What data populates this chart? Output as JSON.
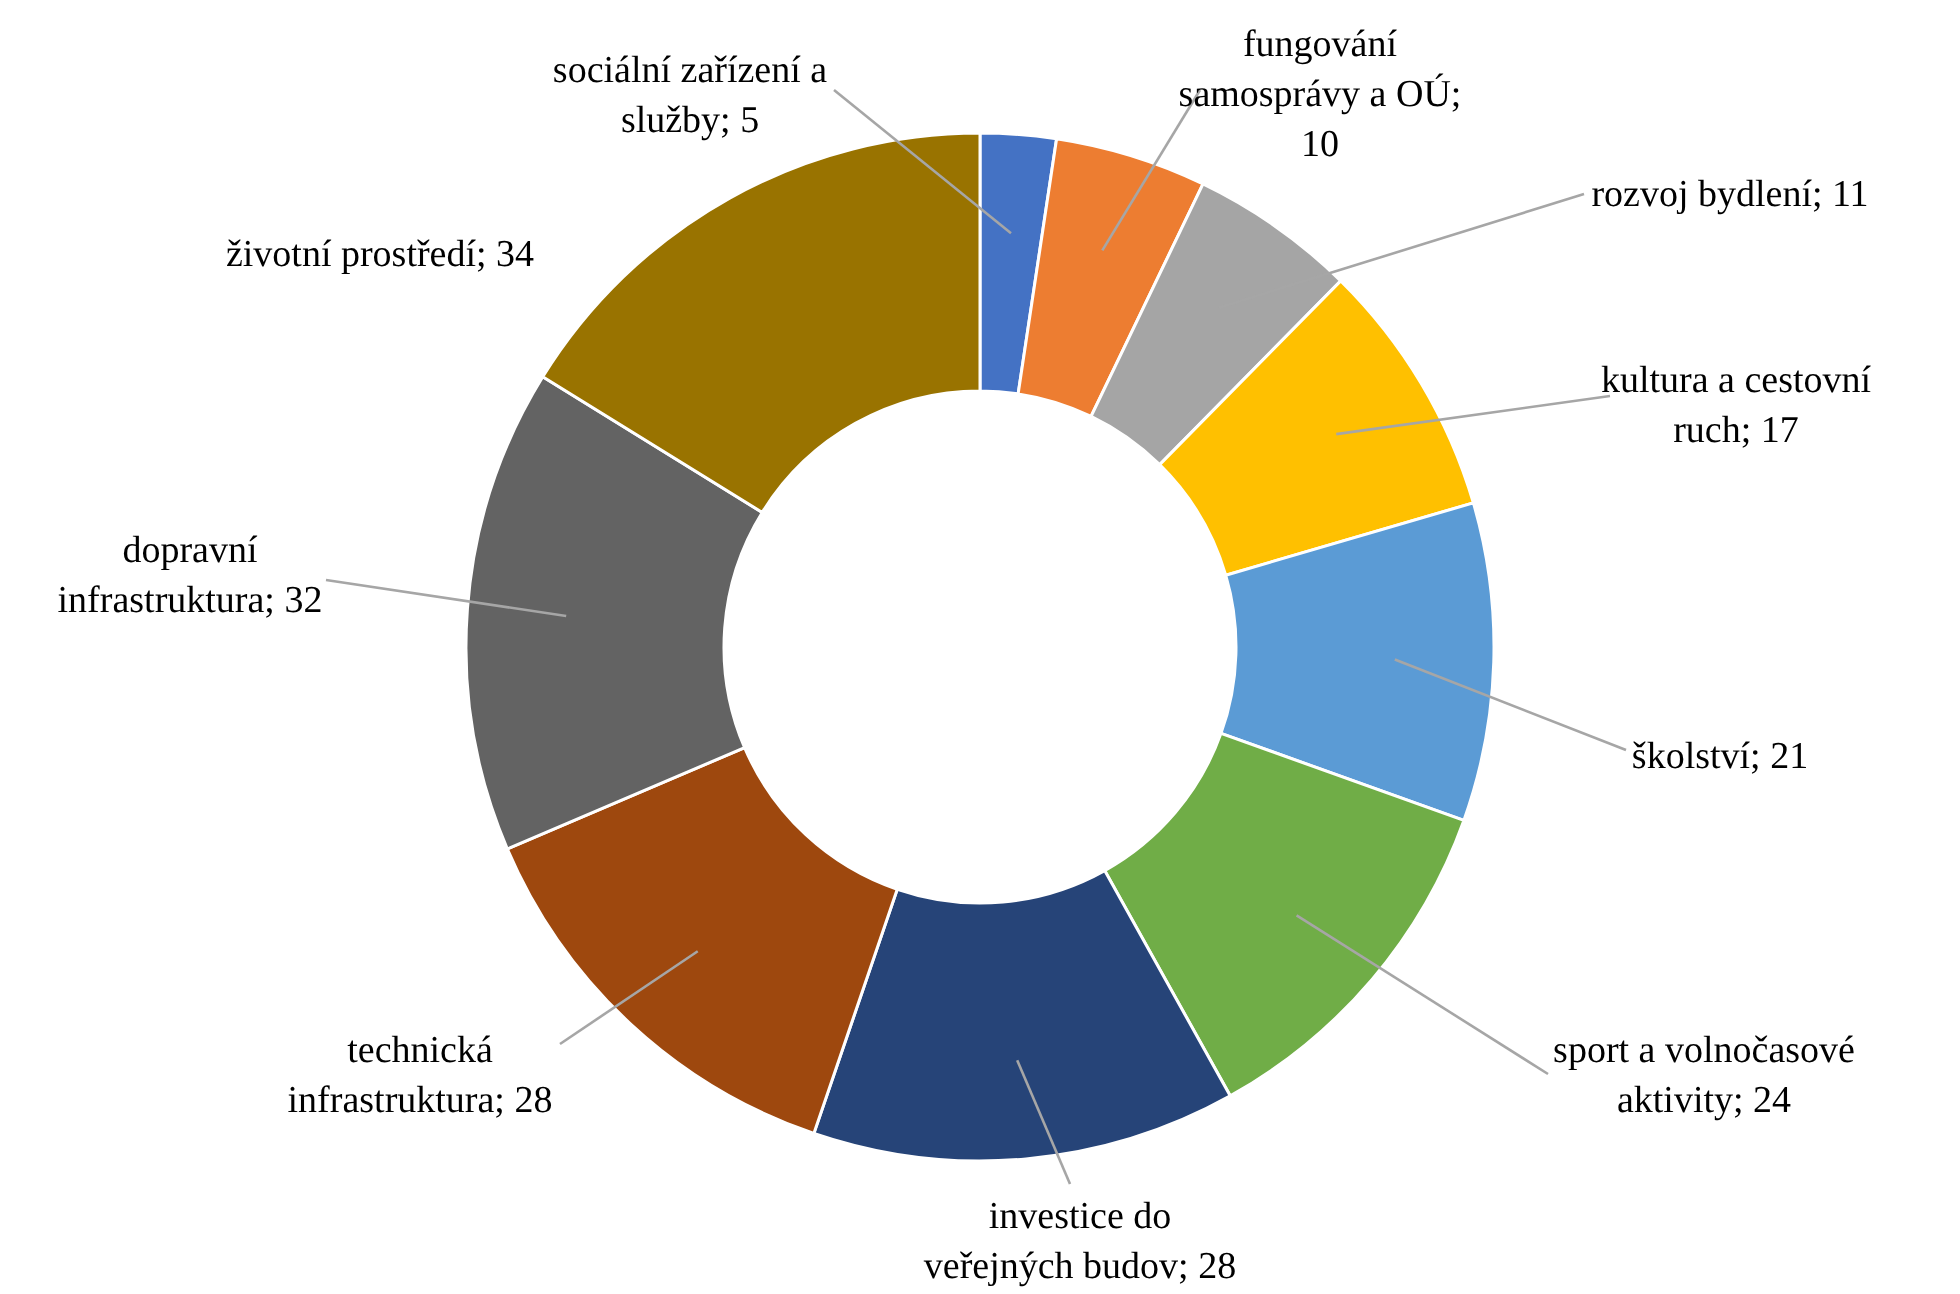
{
  "chart_data": {
    "type": "donut",
    "categories": [
      "sociální zařízení a služby; 5",
      "fungování samosprávy a OÚ; 10",
      "rozvoj bydlení; 11",
      "kultura a cestovní ruch; 17",
      "školství; 21",
      "sport a volnočasové aktivity; 24",
      "investice do veřejných budov; 28",
      "technická infrastruktura; 28",
      "dopravní infrastruktura; 32",
      "životní prostředí; 34"
    ],
    "values": [
      5,
      10,
      11,
      17,
      21,
      24,
      28,
      28,
      32,
      34
    ],
    "colors": [
      "#4472c4",
      "#ed7d31",
      "#a5a5a5",
      "#ffc000",
      "#5b9bd5",
      "#70ad47",
      "#264478",
      "#9e480e",
      "#636363",
      "#997300"
    ]
  }
}
